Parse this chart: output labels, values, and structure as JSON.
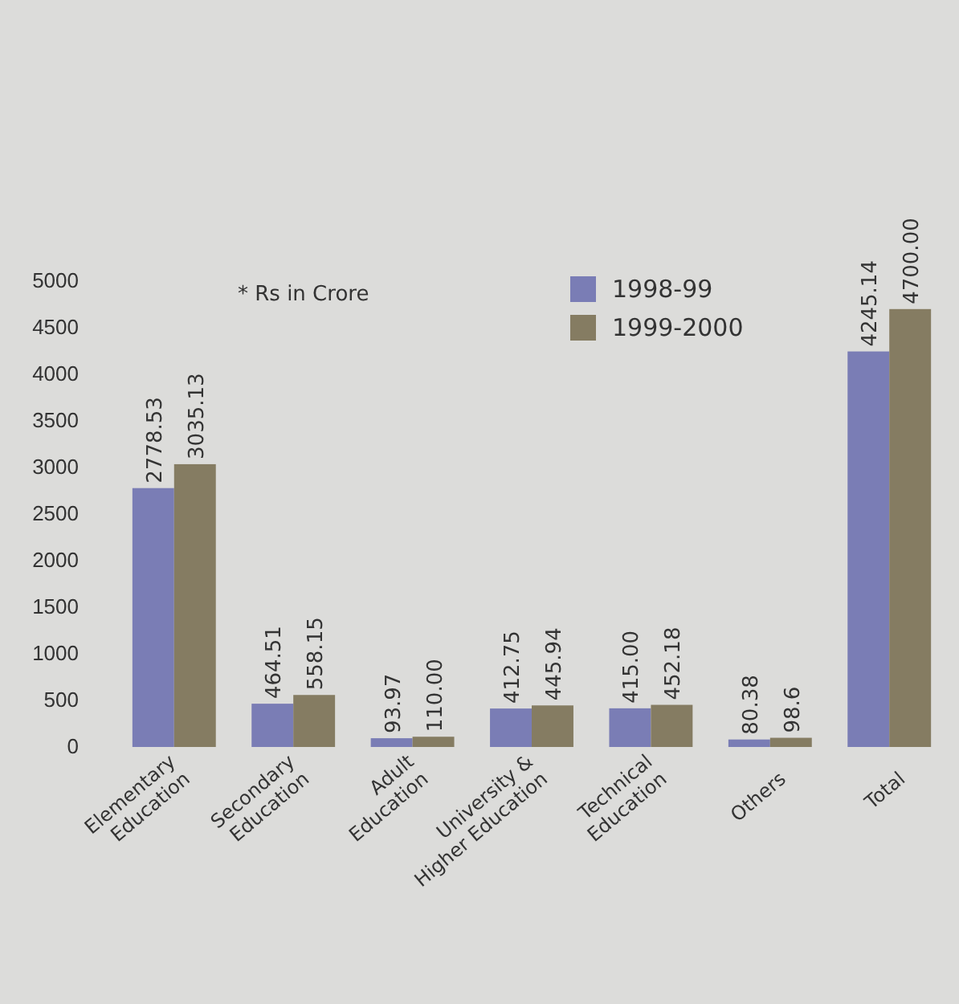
{
  "chart_data": {
    "type": "bar",
    "categories": [
      "Elementary\nEducation",
      "Secondary\nEducation",
      "Adult\nEducation",
      "University &\nHigher Education",
      "Technical\nEducation",
      "Others",
      "Total"
    ],
    "series": [
      {
        "name": "1998-99",
        "color": "#7a7db5",
        "values": [
          2778.53,
          464.51,
          93.97,
          412.75,
          415.0,
          80.38,
          4245.14
        ],
        "value_labels": [
          "2778.53",
          "464.51",
          "93.97",
          "412.75",
          "415.00",
          "80.38",
          "4245.14"
        ]
      },
      {
        "name": "1999-2000",
        "color": "#857c62",
        "values": [
          3035.13,
          558.15,
          110.0,
          445.94,
          452.18,
          98.6,
          4700.0
        ],
        "value_labels": [
          "3035.13",
          "558.15",
          "110.00",
          "445.94",
          "452.18",
          "98.6",
          "4700.00"
        ]
      }
    ],
    "ylim": [
      0,
      5000
    ],
    "yticks": [
      0,
      500,
      1000,
      1500,
      2000,
      2500,
      3000,
      3500,
      4000,
      4500,
      5000
    ],
    "annotations": [
      "* Rs in Crore"
    ],
    "legend": "top",
    "grid": false
  }
}
